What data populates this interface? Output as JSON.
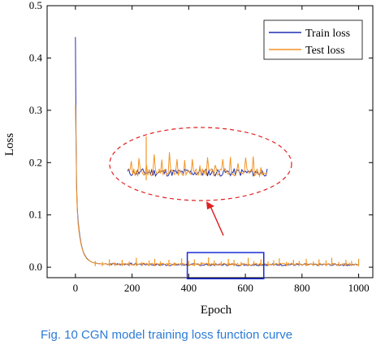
{
  "chart_data": {
    "type": "line",
    "xlabel": "Epoch",
    "ylabel": "Loss",
    "xlim": [
      -100,
      1050
    ],
    "ylim": [
      -0.02,
      0.5
    ],
    "xticks": [
      0,
      200,
      400,
      600,
      800,
      1000
    ],
    "yticks": [
      0.0,
      0.1,
      0.2,
      0.3,
      0.4,
      0.5
    ],
    "xtick_labels": [
      "0",
      "200",
      "400",
      "600",
      "800",
      "1000"
    ],
    "ytick_labels": [
      "0.0",
      "0.1",
      "0.2",
      "0.3",
      "0.4",
      "0.5"
    ],
    "legend_position": "top-right",
    "series": [
      {
        "name": "Train loss",
        "color": "#1f2fb0",
        "points": [
          [
            0,
            0.44
          ],
          [
            2,
            0.26
          ],
          [
            4,
            0.16
          ],
          [
            6,
            0.12
          ],
          [
            8,
            0.1
          ],
          [
            10,
            0.085
          ],
          [
            13,
            0.07
          ],
          [
            16,
            0.058
          ],
          [
            20,
            0.045
          ],
          [
            25,
            0.034
          ],
          [
            30,
            0.026
          ],
          [
            40,
            0.017
          ],
          [
            50,
            0.012
          ],
          [
            60,
            0.009
          ],
          [
            80,
            0.007
          ],
          [
            100,
            0.006
          ],
          [
            150,
            0.005
          ],
          [
            200,
            0.005
          ],
          [
            300,
            0.004
          ],
          [
            400,
            0.004
          ],
          [
            500,
            0.004
          ],
          [
            600,
            0.004
          ],
          [
            700,
            0.004
          ],
          [
            800,
            0.004
          ],
          [
            900,
            0.004
          ],
          [
            1000,
            0.004
          ]
        ]
      },
      {
        "name": "Test loss",
        "color": "#f39422",
        "points": [
          [
            0,
            0.31
          ],
          [
            2,
            0.24
          ],
          [
            4,
            0.15
          ],
          [
            6,
            0.115
          ],
          [
            8,
            0.095
          ],
          [
            10,
            0.08
          ],
          [
            13,
            0.066
          ],
          [
            16,
            0.055
          ],
          [
            20,
            0.043
          ],
          [
            25,
            0.033
          ],
          [
            30,
            0.025
          ],
          [
            40,
            0.016
          ],
          [
            50,
            0.012
          ],
          [
            60,
            0.009
          ],
          [
            80,
            0.007
          ],
          [
            100,
            0.006
          ],
          [
            150,
            0.005
          ],
          [
            200,
            0.005
          ],
          [
            300,
            0.005
          ],
          [
            400,
            0.005
          ],
          [
            500,
            0.005
          ],
          [
            600,
            0.005
          ],
          [
            700,
            0.005
          ],
          [
            800,
            0.005
          ],
          [
            900,
            0.005
          ],
          [
            1000,
            0.005
          ]
        ],
        "spike_epochs": [
          70,
          95,
          120,
          140,
          165,
          190,
          215,
          235,
          260,
          280,
          300,
          330,
          350,
          375,
          400,
          420,
          445,
          470,
          490,
          515,
          540,
          560,
          585,
          610,
          630,
          655,
          680,
          700,
          720,
          745,
          770,
          790,
          815,
          840,
          860,
          885,
          905,
          930,
          955,
          975,
          1000
        ],
        "spike_values": [
          0.012,
          0.01,
          0.015,
          0.009,
          0.014,
          0.011,
          0.018,
          0.01,
          0.013,
          0.016,
          0.011,
          0.014,
          0.009,
          0.017,
          0.012,
          0.015,
          0.01,
          0.019,
          0.013,
          0.011,
          0.016,
          0.014,
          0.01,
          0.018,
          0.012,
          0.015,
          0.011,
          0.013,
          0.017,
          0.01,
          0.014,
          0.012,
          0.016,
          0.011,
          0.015,
          0.013,
          0.018,
          0.01,
          0.014,
          0.012,
          0.016
        ]
      }
    ],
    "annotation": {
      "box_x": [
        395,
        665
      ],
      "box_y": [
        -0.022,
        0.028
      ]
    }
  },
  "caption": {
    "text": "Fig. 10   CGN model training loss function curve"
  }
}
